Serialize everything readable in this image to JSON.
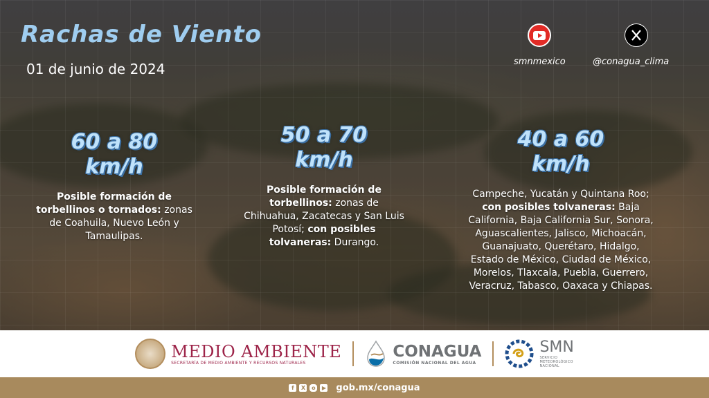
{
  "header": {
    "title": "Rachas de Viento",
    "date": "01 de junio de 2024"
  },
  "social": [
    {
      "icon": "youtube-icon",
      "handle": "smnmexico",
      "color": "#e22b26"
    },
    {
      "icon": "x-icon",
      "handle": "@conagua_clima",
      "color": "#000000"
    }
  ],
  "columns": [
    {
      "range_line1": "60 a 80",
      "range_line2": "km/h",
      "bold1": "Posible formación de torbellinos o tornados:",
      "text1": "zonas de Coahuila, Nuevo León y Tamaulipas.",
      "bold2": "",
      "text2": ""
    },
    {
      "range_line1": "50 a 70",
      "range_line2": "km/h",
      "bold1": "Posible formación de torbellinos:",
      "text1": "zonas de Chihuahua, Zacatecas y San Luis Potosí;",
      "bold2": "con posibles tolvaneras:",
      "text2": "Durango."
    },
    {
      "range_line1": "40 a 60",
      "range_line2": "km/h",
      "pre": "Campeche, Yucatán y Quintana Roo;",
      "bold1": "con posibles tolvaneras:",
      "text1": "Baja California, Baja California Sur, Sonora, Aguascalientes, Jalisco, Michoacán, Guanajuato, Querétaro, Hidalgo, Estado de México, Ciudad de México, Morelos, Tlaxcala, Puebla, Guerrero, Veracruz, Tabasco, Oaxaca y Chiapas."
    }
  ],
  "footer": {
    "medio_ambiente": {
      "title": "MEDIO AMBIENTE",
      "subtitle": "SECRETARÍA DE MEDIO AMBIENTE Y RECURSOS NATURALES"
    },
    "conagua": {
      "title": "CONAGUA",
      "subtitle": "COMISIÓN NACIONAL DEL AGUA"
    },
    "smn": {
      "title": "SMN",
      "subtitle_1": "SERVICIO",
      "subtitle_2": "METEOROLÓGICO",
      "subtitle_3": "NACIONAL"
    },
    "url": "gob.mx/conagua",
    "colors": {
      "guinda": "#9d2449",
      "gold": "#b38e5d",
      "band": "#a88a5d",
      "gray": "#6f7275"
    }
  }
}
